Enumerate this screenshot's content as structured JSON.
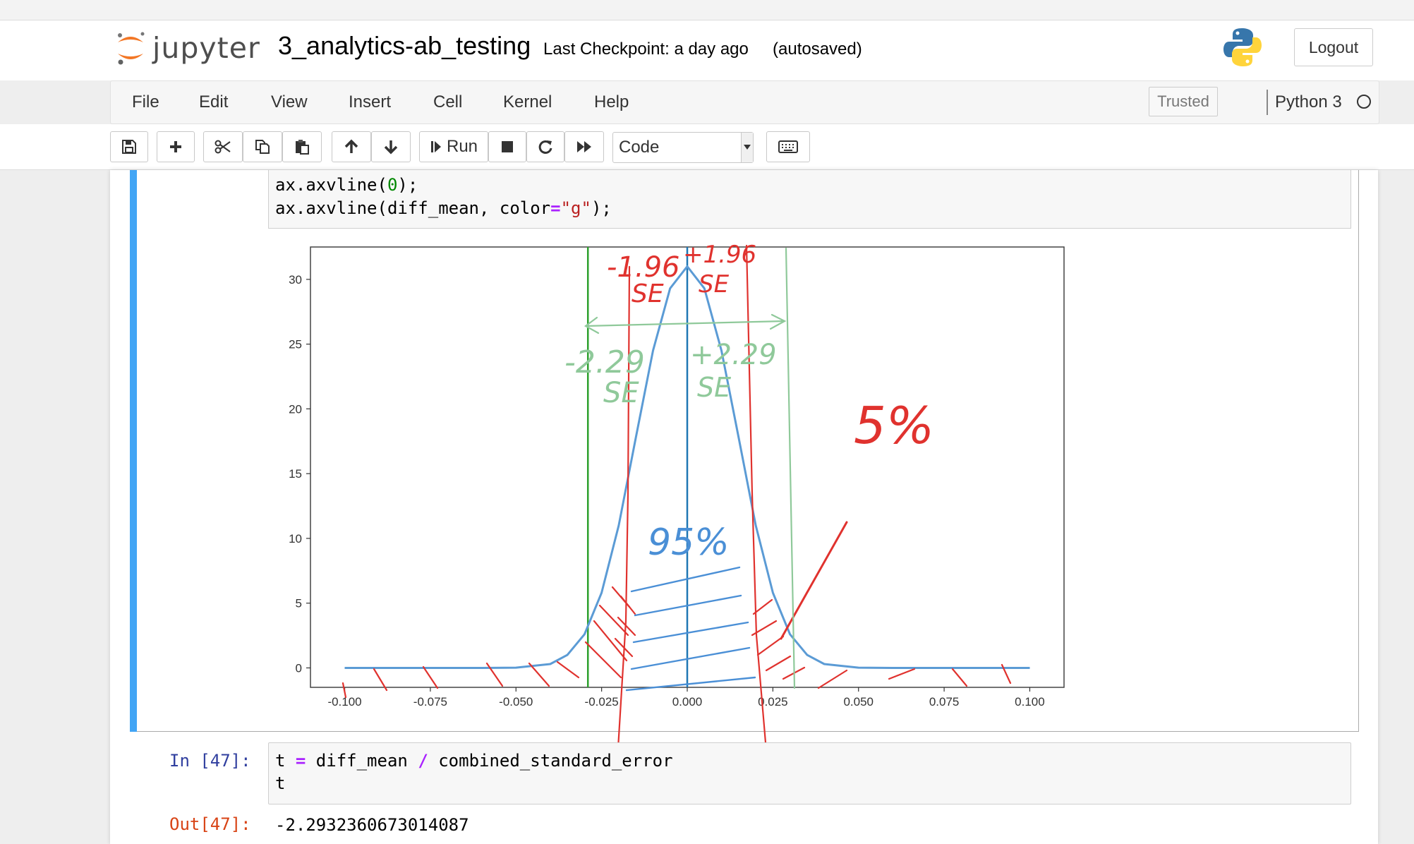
{
  "header": {
    "logo_text": "jupyter",
    "notebook_name": "3_analytics-ab_testing",
    "checkpoint": "Last Checkpoint: a day ago",
    "autosave": "(autosaved)",
    "logout_label": "Logout"
  },
  "menu": {
    "items": [
      "File",
      "Edit",
      "View",
      "Insert",
      "Cell",
      "Kernel",
      "Help"
    ],
    "trusted_label": "Trusted",
    "kernel_name": "Python 3"
  },
  "toolbar": {
    "run_label": "Run",
    "cell_type": "Code",
    "icons": [
      "save-icon",
      "plus-icon",
      "cut-icon",
      "copy-icon",
      "paste-icon",
      "arrow-up-icon",
      "arrow-down-icon",
      "run-icon",
      "stop-icon",
      "restart-icon",
      "fast-forward-icon",
      "keyboard-icon"
    ]
  },
  "cells": {
    "plot_cell": {
      "code_lines": [
        "ax.axvline(0);",
        "ax.axvline(diff_mean, color=\"g\");"
      ]
    },
    "t_cell": {
      "in_prompt": "In [47]:",
      "code_lines": [
        "t = diff_mean / combined_standard_error",
        "t"
      ],
      "out_prompt": "Out[47]:",
      "output": "-2.2932360673014087"
    }
  },
  "annotations": {
    "red_top_left": "-1.96",
    "red_top_right": "+1.96",
    "se": "SE",
    "green_left": "-2.29",
    "green_right": "+2.29",
    "pct_outside": "5%",
    "pct_inside": "95%"
  },
  "chart_data": {
    "type": "line",
    "x": [
      -0.1,
      -0.09,
      -0.08,
      -0.07,
      -0.06,
      -0.05,
      -0.04,
      -0.035,
      -0.03,
      -0.025,
      -0.02,
      -0.015,
      -0.01,
      -0.005,
      0.0,
      0.005,
      0.01,
      0.015,
      0.02,
      0.025,
      0.03,
      0.035,
      0.04,
      0.05,
      0.06,
      0.07,
      0.08,
      0.09,
      0.1
    ],
    "series": [
      {
        "values": [
          0,
          0,
          0,
          0,
          0,
          0.02,
          0.3,
          1.0,
          2.6,
          5.8,
          11.0,
          17.8,
          24.5,
          29.3,
          31.0,
          29.3,
          24.5,
          17.8,
          11.0,
          5.8,
          2.6,
          1.0,
          0.3,
          0.02,
          0,
          0,
          0,
          0,
          0
        ],
        "color": "#5b9bd5"
      }
    ],
    "vlines": [
      {
        "x": 0.0,
        "color": "#1f77b4"
      },
      {
        "x": -0.029,
        "color": "#2ca02c"
      }
    ],
    "xlim": [
      -0.11,
      0.11
    ],
    "ylim": [
      -1.5,
      32.5
    ],
    "xticks": [
      -0.1,
      -0.075,
      -0.05,
      -0.025,
      0.0,
      0.025,
      0.05,
      0.075,
      0.1
    ],
    "xtick_labels": [
      "-0.100",
      "-0.075",
      "-0.050",
      "-0.025",
      "0.000",
      "0.025",
      "0.050",
      "0.075",
      "0.100"
    ],
    "yticks": [
      0,
      5,
      10,
      15,
      20,
      25,
      30
    ],
    "ytick_labels": [
      "0",
      "5",
      "10",
      "15",
      "20",
      "25",
      "30"
    ],
    "grid": false
  }
}
